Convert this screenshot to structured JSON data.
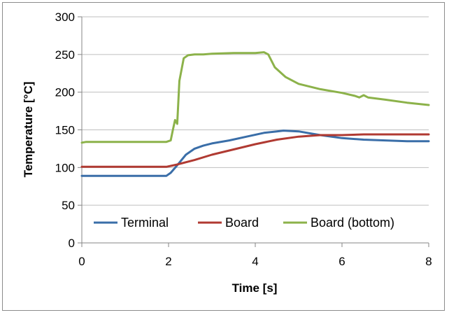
{
  "chart_data": {
    "type": "line",
    "title": "",
    "xlabel": "Time [s]",
    "ylabel": "Temperature [°C]",
    "xlim": [
      0,
      8
    ],
    "ylim": [
      0,
      300
    ],
    "x_ticks": [
      0,
      2,
      4,
      6,
      8
    ],
    "y_ticks": [
      0,
      50,
      100,
      150,
      200,
      250,
      300
    ],
    "grid": "horizontal",
    "legend_position": "lower-center",
    "series": [
      {
        "name": "Terminal",
        "color": "#3a6ea8",
        "points": [
          [
            0,
            89
          ],
          [
            1.95,
            89
          ],
          [
            2.05,
            93
          ],
          [
            2.2,
            103
          ],
          [
            2.4,
            117
          ],
          [
            2.6,
            125
          ],
          [
            2.8,
            129
          ],
          [
            3.0,
            132
          ],
          [
            3.4,
            136
          ],
          [
            3.8,
            141
          ],
          [
            4.2,
            146
          ],
          [
            4.5,
            148
          ],
          [
            4.65,
            149
          ],
          [
            5.0,
            148
          ],
          [
            5.5,
            143
          ],
          [
            6.0,
            139
          ],
          [
            6.5,
            137
          ],
          [
            7.0,
            136
          ],
          [
            7.5,
            135
          ],
          [
            8.0,
            135
          ]
        ]
      },
      {
        "name": "Board",
        "color": "#b03a32",
        "points": [
          [
            0,
            101
          ],
          [
            1.95,
            101
          ],
          [
            2.2,
            104
          ],
          [
            2.6,
            110
          ],
          [
            3.0,
            117
          ],
          [
            3.5,
            124
          ],
          [
            4.0,
            131
          ],
          [
            4.5,
            137
          ],
          [
            5.0,
            141
          ],
          [
            5.5,
            143
          ],
          [
            6.0,
            143
          ],
          [
            6.5,
            144
          ],
          [
            7.0,
            144
          ],
          [
            7.5,
            144
          ],
          [
            8.0,
            144
          ]
        ]
      },
      {
        "name": "Board (bottom)",
        "color": "#8cb24a",
        "points": [
          [
            0,
            133
          ],
          [
            0.1,
            134
          ],
          [
            1.95,
            134
          ],
          [
            2.05,
            136
          ],
          [
            2.1,
            150
          ],
          [
            2.15,
            163
          ],
          [
            2.2,
            158
          ],
          [
            2.25,
            215
          ],
          [
            2.3,
            230
          ],
          [
            2.35,
            245
          ],
          [
            2.45,
            249
          ],
          [
            2.6,
            250
          ],
          [
            2.8,
            250
          ],
          [
            3.0,
            251
          ],
          [
            3.5,
            252
          ],
          [
            4.0,
            252
          ],
          [
            4.2,
            253
          ],
          [
            4.3,
            250
          ],
          [
            4.45,
            233
          ],
          [
            4.7,
            220
          ],
          [
            5.0,
            211
          ],
          [
            5.5,
            204
          ],
          [
            6.0,
            199
          ],
          [
            6.3,
            195
          ],
          [
            6.4,
            193
          ],
          [
            6.5,
            196
          ],
          [
            6.6,
            193
          ],
          [
            7.0,
            190
          ],
          [
            7.5,
            186
          ],
          [
            8.0,
            183
          ]
        ]
      }
    ]
  }
}
